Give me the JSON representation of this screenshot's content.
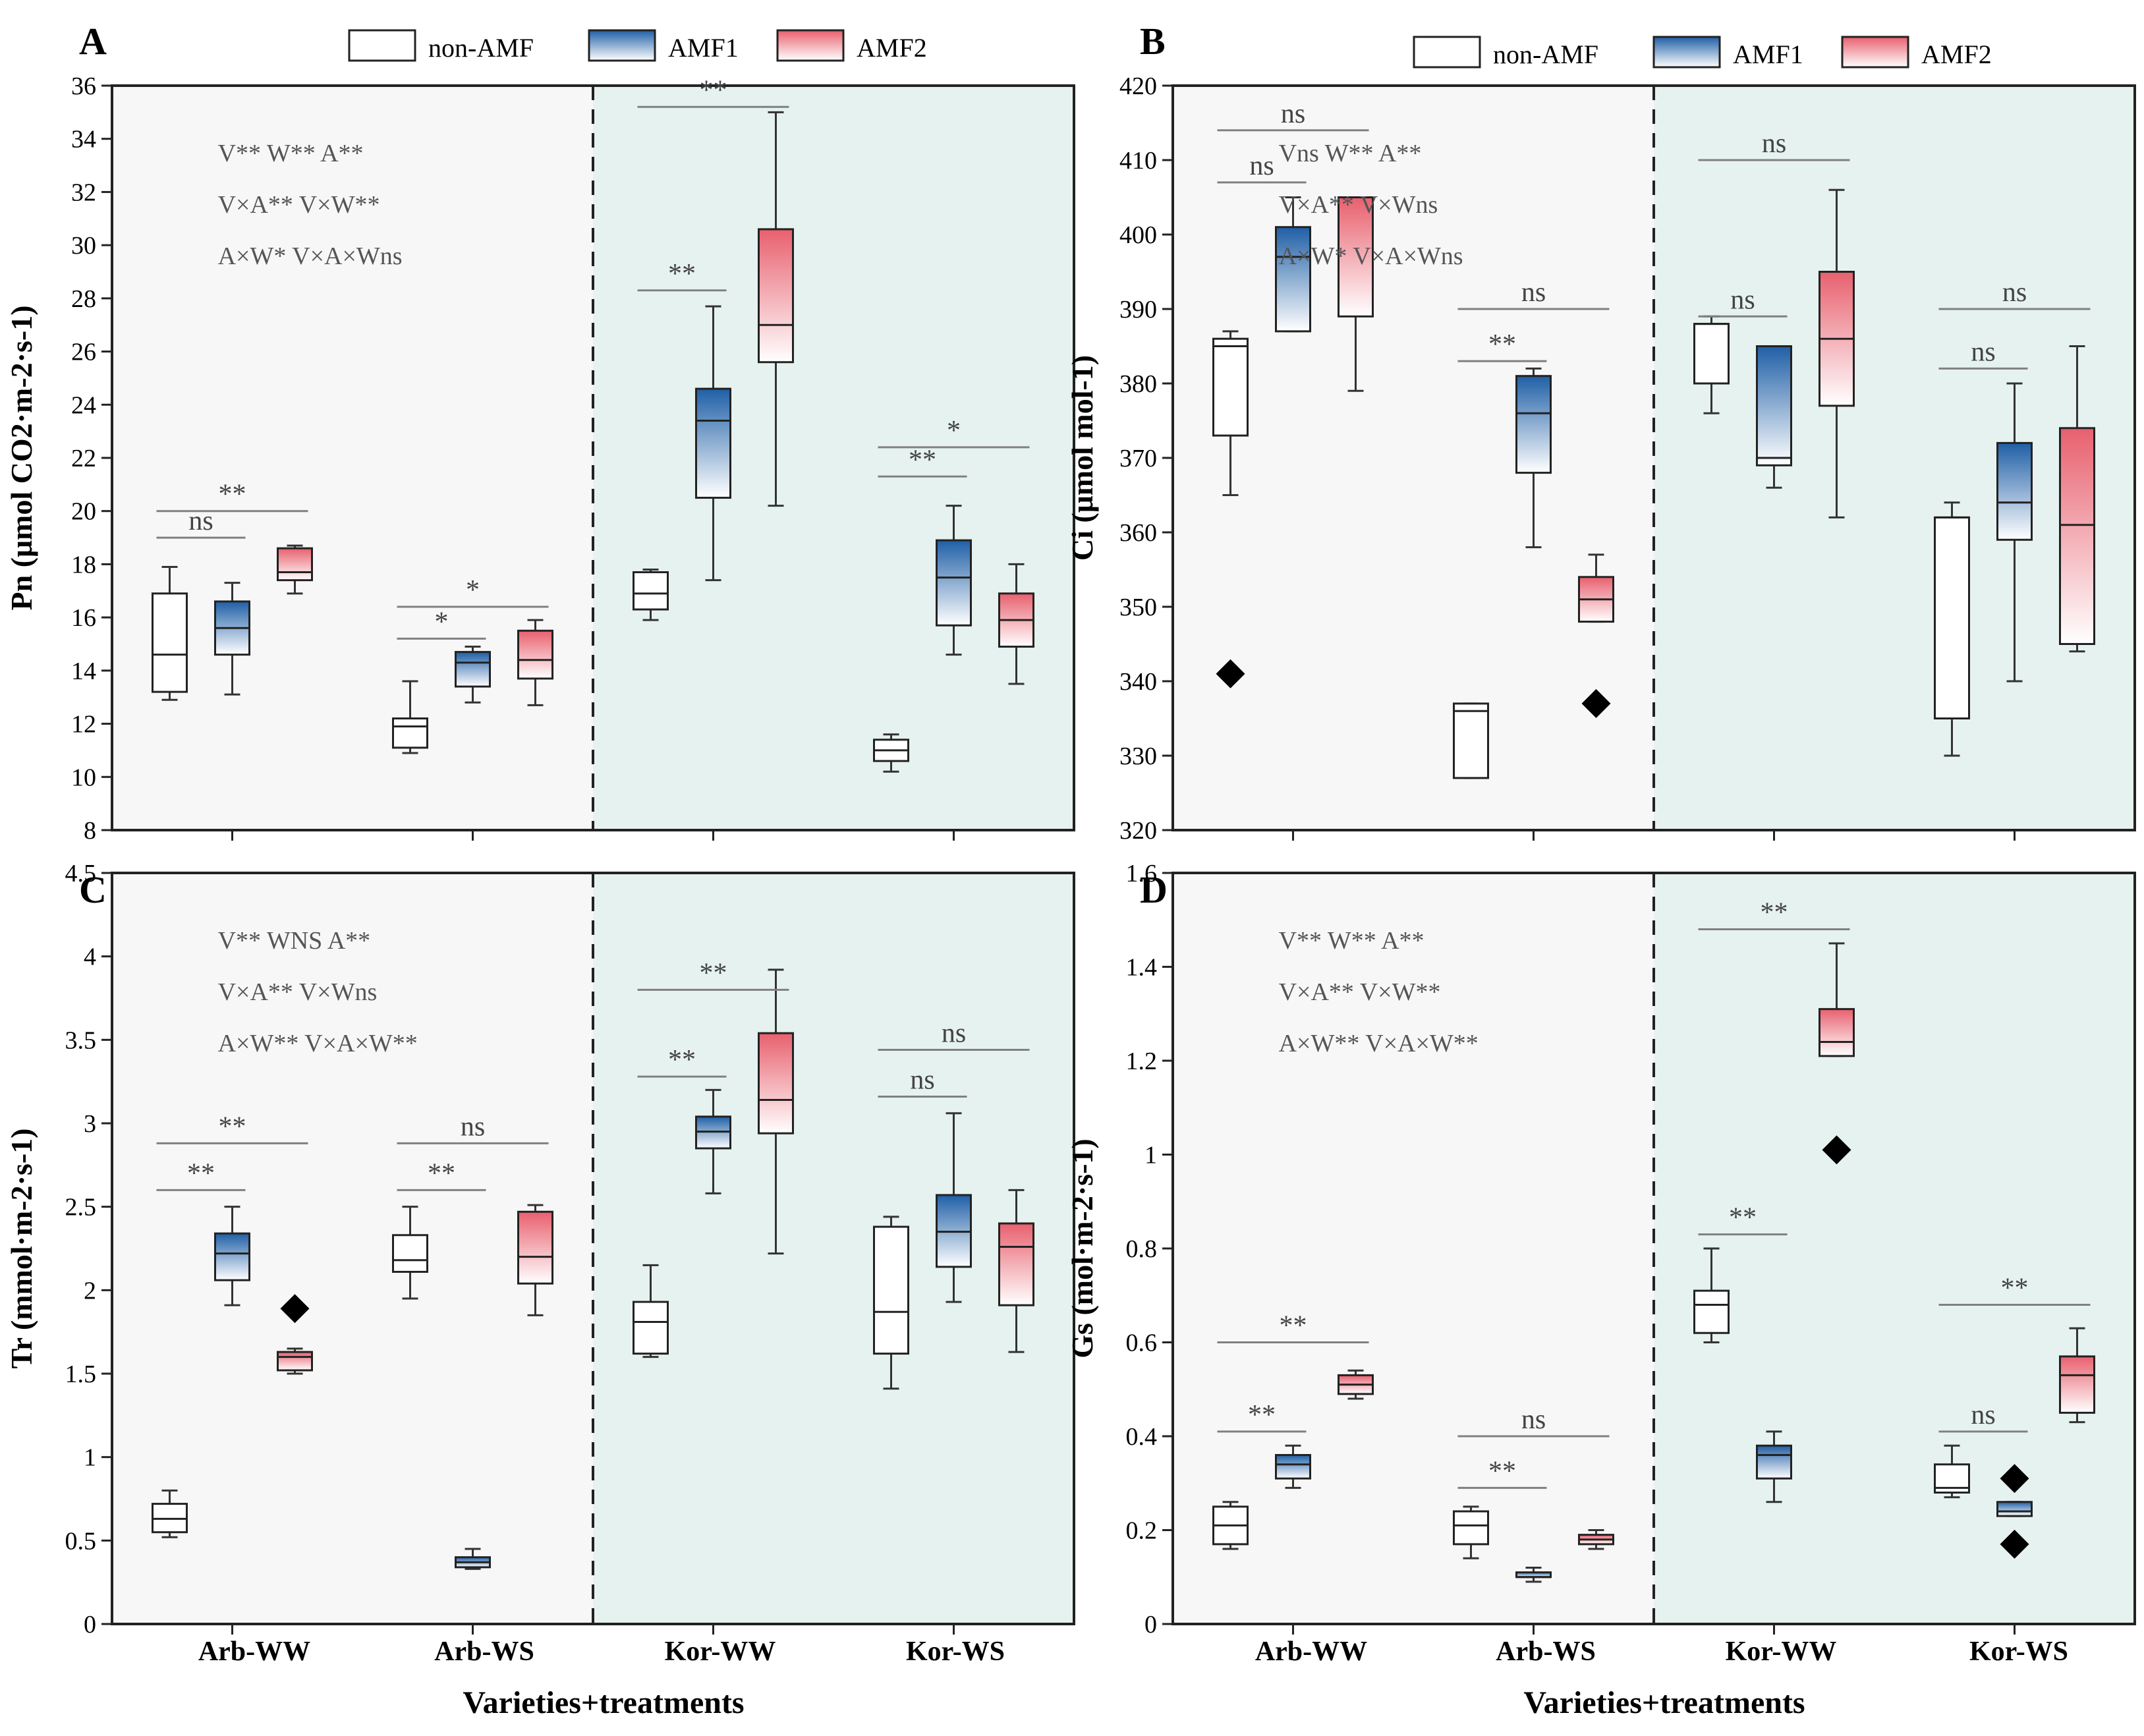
{
  "figure": {
    "xlabel": "Varieties+treatments",
    "categories": [
      "Arb-WW",
      "Arb-WS",
      "Kor-WW",
      "Kor-WS"
    ],
    "legend": [
      "non-AMF",
      "AMF1",
      "AMF2"
    ],
    "colors": {
      "amf1": "#1f5fa6",
      "amf2": "#e8606e",
      "shadeArb": "#f7f7f7",
      "shadeKor": "#e6f2ef",
      "axis": "#222222",
      "sig": "#808080"
    }
  },
  "chart_data": [
    {
      "panel": "A",
      "type": "box",
      "ylabel": "Pn (μmol CO2·m-2·s-1)",
      "ylim": [
        8,
        36
      ],
      "yticks": [
        8,
        10,
        12,
        14,
        16,
        18,
        20,
        22,
        24,
        26,
        28,
        30,
        32,
        34,
        36
      ],
      "cat": [
        "Arb-WW",
        "Arb-WW",
        "Arb-WW",
        "Arb-WS",
        "Arb-WS",
        "Arb-WS",
        "Kor-WW",
        "Kor-WW",
        "Kor-WW",
        "Kor-WS",
        "Kor-WS",
        "Kor-WS"
      ],
      "grp": [
        "non-AMF",
        "AMF1",
        "AMF2",
        "non-AMF",
        "AMF1",
        "AMF2",
        "non-AMF",
        "AMF1",
        "AMF2",
        "non-AMF",
        "AMF1",
        "AMF2"
      ],
      "q": [
        [
          12.9,
          13.2,
          14.6,
          16.9,
          17.9
        ],
        [
          13.1,
          14.6,
          15.6,
          16.6,
          17.3
        ],
        [
          16.9,
          17.4,
          17.7,
          18.6,
          18.7
        ],
        [
          10.9,
          11.1,
          11.9,
          12.2,
          13.6
        ],
        [
          12.8,
          13.4,
          14.3,
          14.7,
          14.9
        ],
        [
          12.7,
          13.7,
          14.4,
          15.5,
          15.9
        ],
        [
          15.9,
          16.3,
          16.9,
          17.7,
          17.8
        ],
        [
          17.4,
          20.5,
          23.4,
          24.6,
          27.7
        ],
        [
          20.2,
          25.6,
          27.0,
          30.6,
          35.0
        ],
        [
          10.2,
          10.6,
          11.0,
          11.4,
          11.6
        ],
        [
          14.6,
          15.7,
          17.5,
          18.9,
          20.2
        ],
        [
          13.5,
          14.9,
          15.9,
          16.9,
          18.0
        ]
      ],
      "of": [
        null,
        null,
        null,
        null,
        null,
        null,
        null,
        null,
        null,
        null,
        null,
        null
      ],
      "sigs": [
        {
          "cat": "Arb-WW",
          "label": "ns",
          "y": 19.0
        },
        {
          "cat": "Arb-WW",
          "label": "**",
          "y": 20.0
        },
        {
          "cat": "Arb-WS",
          "label": "*",
          "y": 15.2
        },
        {
          "cat": "Arb-WS",
          "label": "*",
          "y": 16.4
        },
        {
          "cat": "Kor-WW",
          "label": "**",
          "y": 28.3
        },
        {
          "cat": "Kor-WW",
          "label": "**",
          "y": 35.2
        },
        {
          "cat": "Kor-WS",
          "label": "**",
          "y": 21.3
        },
        {
          "cat": "Kor-WS",
          "label": "*",
          "y": 22.4
        }
      ],
      "stats": [
        "V** W** A**",
        "V×A** V×W**",
        "A×W* V×A×Wns"
      ]
    },
    {
      "panel": "B",
      "type": "box",
      "ylabel": "Ci (μmol mol-1)",
      "ylim": [
        320,
        420
      ],
      "yticks": [
        320,
        330,
        340,
        350,
        360,
        370,
        380,
        390,
        400,
        410,
        420
      ],
      "cat": [
        "Arb-WW",
        "Arb-WW",
        "Arb-WW",
        "Arb-WS",
        "Arb-WS",
        "Arb-WS",
        "Kor-WW",
        "Kor-WW",
        "Kor-WW",
        "Kor-WS",
        "Kor-WS",
        "Kor-WS"
      ],
      "grp": [
        "non-AMF",
        "AMF1",
        "AMF2",
        "non-AMF",
        "AMF1",
        "AMF2",
        "non-AMF",
        "AMF1",
        "AMF2",
        "non-AMF",
        "AMF1",
        "AMF2"
      ],
      "q": [
        [
          365,
          373,
          385,
          386,
          387
        ],
        [
          387,
          387,
          397,
          401,
          405
        ],
        [
          379,
          389,
          405,
          405,
          405
        ],
        [
          327,
          327,
          336,
          337,
          337
        ],
        [
          358,
          368,
          376,
          381,
          382
        ],
        [
          348,
          348,
          351,
          354,
          357
        ],
        [
          376,
          380,
          388,
          388,
          389
        ],
        [
          366,
          369,
          370,
          385,
          385
        ],
        [
          362,
          377,
          386,
          395,
          406
        ],
        [
          330,
          335,
          362,
          362,
          364
        ],
        [
          340,
          359,
          364,
          372,
          380
        ],
        [
          344,
          345,
          361,
          374,
          385
        ]
      ],
      "of": [
        341,
        null,
        null,
        null,
        null,
        337,
        null,
        null,
        null,
        null,
        null,
        null
      ],
      "sigs": [
        {
          "cat": "Arb-WW",
          "label": "ns",
          "y": 407
        },
        {
          "cat": "Arb-WW",
          "label": "ns",
          "y": 414
        },
        {
          "cat": "Arb-WS",
          "label": "**",
          "y": 383
        },
        {
          "cat": "Arb-WS",
          "label": "ns",
          "y": 390
        },
        {
          "cat": "Kor-WW",
          "label": "ns",
          "y": 389
        },
        {
          "cat": "Kor-WW",
          "label": "ns",
          "y": 410
        },
        {
          "cat": "Kor-WS",
          "label": "ns",
          "y": 382
        },
        {
          "cat": "Kor-WS",
          "label": "ns",
          "y": 390
        }
      ],
      "stats": [
        "Vns W** A**",
        "V×A** V×Wns",
        "A×W* V×A×Wns"
      ]
    },
    {
      "panel": "C",
      "type": "box",
      "ylabel": "Tr (mmol·m-2·s-1)",
      "ylim": [
        0,
        4.5
      ],
      "yticks": [
        0,
        0.5,
        1.0,
        1.5,
        2.0,
        2.5,
        3.0,
        3.5,
        4.0,
        4.5
      ],
      "cat": [
        "Arb-WW",
        "Arb-WW",
        "Arb-WW",
        "Arb-WS",
        "Arb-WS",
        "Arb-WS",
        "Kor-WW",
        "Kor-WW",
        "Kor-WW",
        "Kor-WS",
        "Kor-WS",
        "Kor-WS"
      ],
      "grp": [
        "non-AMF",
        "AMF1",
        "AMF2",
        "non-AMF",
        "AMF1",
        "AMF2",
        "non-AMF",
        "AMF1",
        "AMF2",
        "non-AMF",
        "AMF1",
        "AMF2"
      ],
      "q": [
        [
          0.52,
          0.55,
          0.63,
          0.72,
          0.8
        ],
        [
          1.91,
          2.06,
          2.22,
          2.34,
          2.5
        ],
        [
          1.5,
          1.52,
          1.6,
          1.63,
          1.65
        ],
        [
          1.95,
          2.11,
          2.18,
          2.33,
          2.5
        ],
        [
          0.33,
          0.34,
          0.37,
          0.4,
          0.45
        ],
        [
          1.85,
          2.04,
          2.2,
          2.47,
          2.51
        ],
        [
          1.6,
          1.62,
          1.81,
          1.93,
          2.15
        ],
        [
          2.58,
          2.85,
          2.95,
          3.04,
          3.2
        ],
        [
          2.22,
          2.94,
          3.14,
          3.54,
          3.92
        ],
        [
          1.41,
          1.62,
          1.87,
          2.38,
          2.44
        ],
        [
          1.93,
          2.14,
          2.35,
          2.57,
          3.06
        ],
        [
          1.63,
          1.91,
          2.26,
          2.4,
          2.6
        ]
      ],
      "of": [
        null,
        null,
        1.89,
        null,
        null,
        null,
        null,
        null,
        null,
        null,
        null,
        null
      ],
      "sigs": [
        {
          "cat": "Arb-WW",
          "label": "**",
          "y": 2.6
        },
        {
          "cat": "Arb-WW",
          "label": "**",
          "y": 2.88
        },
        {
          "cat": "Arb-WS",
          "label": "**",
          "y": 2.6
        },
        {
          "cat": "Arb-WS",
          "label": "ns",
          "y": 2.88
        },
        {
          "cat": "Kor-WW",
          "label": "**",
          "y": 3.28
        },
        {
          "cat": "Kor-WW",
          "label": "**",
          "y": 3.8
        },
        {
          "cat": "Kor-WS",
          "label": "ns",
          "y": 3.16
        },
        {
          "cat": "Kor-WS",
          "label": "ns",
          "y": 3.44
        }
      ],
      "stats": [
        "V** WNS A**",
        "V×A** V×Wns",
        "A×W** V×A×W**"
      ]
    },
    {
      "panel": "D",
      "type": "box",
      "ylabel": "Gs (mol·m-2·s-1)",
      "ylim": [
        0,
        1.6
      ],
      "yticks": [
        0,
        0.2,
        0.4,
        0.6,
        0.8,
        1.0,
        1.2,
        1.4,
        1.6
      ],
      "cat": [
        "Arb-WW",
        "Arb-WW",
        "Arb-WW",
        "Arb-WS",
        "Arb-WS",
        "Arb-WS",
        "Kor-WW",
        "Kor-WW",
        "Kor-WW",
        "Kor-WS",
        "Kor-WS",
        "Kor-WS"
      ],
      "grp": [
        "non-AMF",
        "AMF1",
        "AMF2",
        "non-AMF",
        "AMF1",
        "AMF2",
        "non-AMF",
        "AMF1",
        "AMF2",
        "non-AMF",
        "AMF1",
        "AMF2"
      ],
      "q": [
        [
          0.16,
          0.17,
          0.21,
          0.25,
          0.26
        ],
        [
          0.29,
          0.31,
          0.34,
          0.36,
          0.38
        ],
        [
          0.48,
          0.49,
          0.51,
          0.53,
          0.54
        ],
        [
          0.14,
          0.17,
          0.21,
          0.24,
          0.25
        ],
        [
          0.09,
          0.1,
          0.1,
          0.11,
          0.12
        ],
        [
          0.16,
          0.17,
          0.18,
          0.19,
          0.2
        ],
        [
          0.6,
          0.62,
          0.68,
          0.71,
          0.8
        ],
        [
          0.26,
          0.31,
          0.36,
          0.38,
          0.41
        ],
        [
          1.21,
          1.21,
          1.24,
          1.31,
          1.45
        ],
        [
          0.27,
          0.28,
          0.29,
          0.34,
          0.38
        ],
        [
          0.23,
          0.23,
          0.24,
          0.26,
          0.26
        ],
        [
          0.43,
          0.45,
          0.53,
          0.57,
          0.63
        ]
      ],
      "of": [
        null,
        null,
        null,
        null,
        null,
        null,
        null,
        null,
        1.01,
        null,
        [
          0.31,
          0.17
        ],
        null
      ],
      "sigs": [
        {
          "cat": "Arb-WW",
          "label": "**",
          "y": 0.41
        },
        {
          "cat": "Arb-WW",
          "label": "**",
          "y": 0.6
        },
        {
          "cat": "Arb-WS",
          "label": "**",
          "y": 0.29
        },
        {
          "cat": "Arb-WS",
          "label": "ns",
          "y": 0.4
        },
        {
          "cat": "Kor-WW",
          "label": "**",
          "y": 0.83
        },
        {
          "cat": "Kor-WW",
          "label": "**",
          "y": 1.48
        },
        {
          "cat": "Kor-WS",
          "label": "ns",
          "y": 0.41
        },
        {
          "cat": "Kor-WS",
          "label": "**",
          "y": 0.68
        }
      ],
      "stats": [
        "V** W** A**",
        "V×A** V×W**",
        "A×W** V×A×W**"
      ]
    }
  ]
}
